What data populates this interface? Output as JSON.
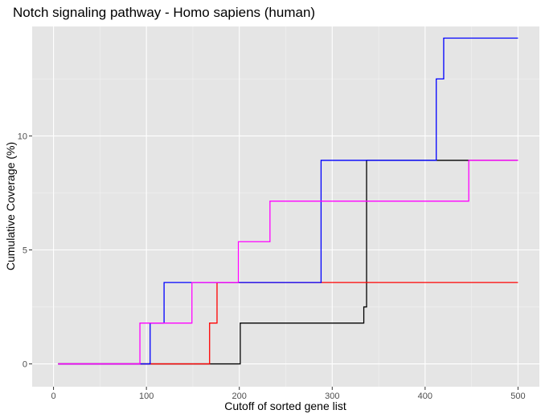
{
  "chart_data": {
    "type": "line",
    "title": "Notch signaling pathway - Homo sapiens (human)",
    "xlabel": "Cutoff of sorted gene list",
    "ylabel": "Cumulative Coverage (%)",
    "xlim": [
      -23,
      523
    ],
    "ylim": [
      -1.0,
      14.8
    ],
    "xticks": [
      0,
      100,
      200,
      300,
      400,
      500
    ],
    "yticks": [
      0,
      5,
      10
    ],
    "grid": true,
    "legend": "none",
    "series": [
      {
        "color": "#000000",
        "step_points": [
          [
            5,
            0
          ],
          [
            201,
            0
          ],
          [
            201,
            1.79
          ],
          [
            334,
            1.79
          ],
          [
            334,
            2.5
          ],
          [
            337,
            2.5
          ],
          [
            337,
            8.93
          ],
          [
            500,
            8.93
          ]
        ]
      },
      {
        "color": "#ff0000",
        "step_points": [
          [
            5,
            0
          ],
          [
            168,
            0
          ],
          [
            168,
            1.79
          ],
          [
            176,
            1.79
          ],
          [
            176,
            3.57
          ],
          [
            500,
            3.57
          ]
        ]
      },
      {
        "color": "#0000ff",
        "step_points": [
          [
            5,
            0
          ],
          [
            104,
            0
          ],
          [
            104,
            1.79
          ],
          [
            119,
            1.79
          ],
          [
            119,
            3.57
          ],
          [
            288,
            3.57
          ],
          [
            288,
            8.93
          ],
          [
            412,
            8.93
          ],
          [
            412,
            12.5
          ],
          [
            420,
            12.5
          ],
          [
            420,
            14.29
          ],
          [
            500,
            14.29
          ]
        ]
      },
      {
        "color": "#ff00ff",
        "step_points": [
          [
            5,
            0
          ],
          [
            93,
            0
          ],
          [
            93,
            1.79
          ],
          [
            149,
            1.79
          ],
          [
            149,
            3.57
          ],
          [
            199,
            3.57
          ],
          [
            199,
            5.36
          ],
          [
            233,
            5.36
          ],
          [
            233,
            7.14
          ],
          [
            447,
            7.14
          ],
          [
            447,
            8.93
          ],
          [
            500,
            8.93
          ]
        ]
      }
    ]
  }
}
